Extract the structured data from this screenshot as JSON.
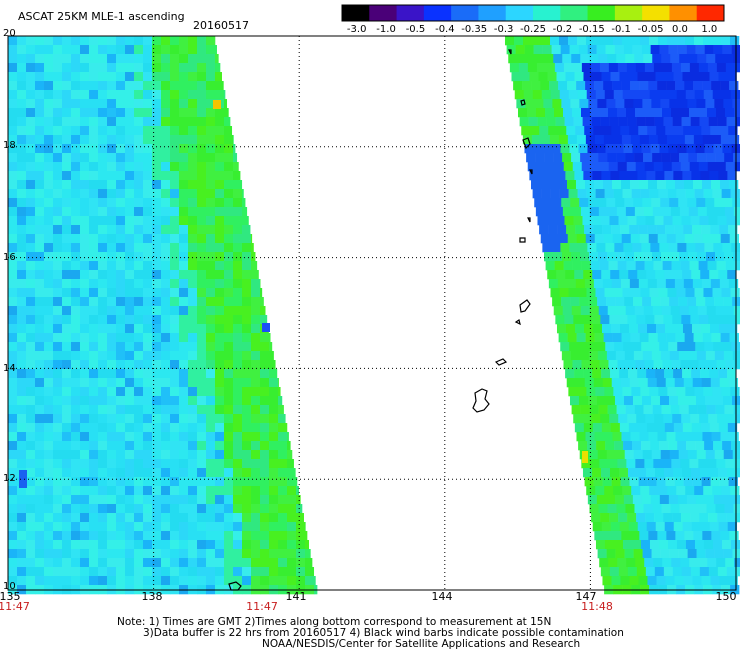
{
  "header": {
    "title": "ASCAT 25KM MLE-1 ascending",
    "date": "20160517"
  },
  "colorbar": {
    "labels": [
      "-3.0",
      "-1.0",
      "-0.5",
      "-0.4",
      "-0.35",
      "-0.3",
      "-0.25",
      "-0.2",
      "-0.15",
      "-0.1",
      "-0.05",
      "0.0",
      "1.0"
    ],
    "colors": [
      "#000000",
      "#4a0078",
      "#3a14c8",
      "#0a32ff",
      "#1a6cf8",
      "#1fa0ff",
      "#2cd6ff",
      "#28f2d0",
      "#30f080",
      "#38ee20",
      "#a8f010",
      "#f4e000",
      "#ff9000",
      "#ff2800"
    ]
  },
  "latitude_labels": [
    "20",
    "18",
    "16",
    "14",
    "12",
    "10"
  ],
  "longitude_labels": [
    "135",
    "138",
    "141",
    "144",
    "147",
    "150"
  ],
  "time_labels": [
    "11:47",
    "11:47",
    "11:48"
  ],
  "notes": {
    "line1": "Note: 1) Times are GMT 2)Times along bottom correspond to measurement at 15N",
    "line2": "3)Data buffer is 22 hrs from 20160517 4) Black wind barbs indicate possible contamination",
    "line3": "NOAA/NESDIS/Center for Satellite Applications and Research"
  },
  "map": {
    "lat_range": [
      10,
      20
    ],
    "lon_range": [
      135,
      150
    ],
    "grid": true,
    "left_swath_color": "#2ce8f0",
    "right_swath_color": "#2ce8f0",
    "edge_color": "#30f060",
    "low_value_color": "#0a40f0"
  }
}
